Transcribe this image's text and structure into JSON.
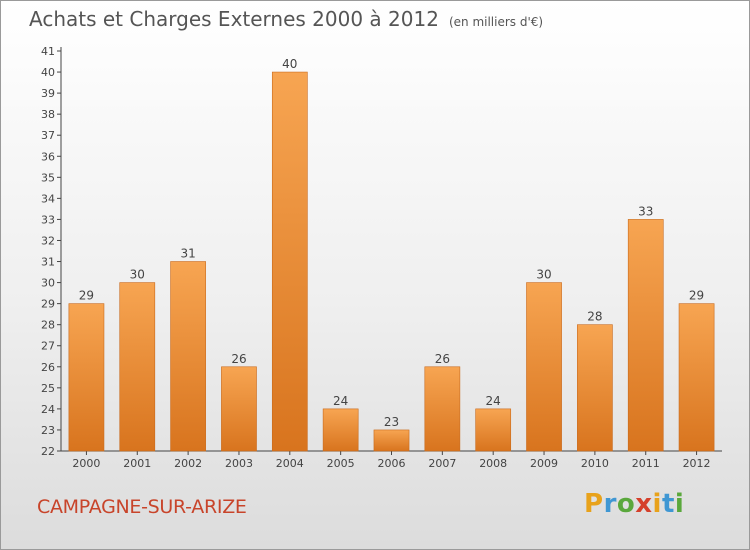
{
  "header": {
    "title": "Achats et Charges Externes 2000 à 2012",
    "subtitle": "(en milliers d'€)"
  },
  "footer": {
    "commune": "CAMPAGNE-SUR-ARIZE",
    "brand": "Proxiti"
  },
  "colors": {
    "bar_top": "#f7a552",
    "bar_bottom": "#d8741e",
    "commune_text": "#c8442a"
  },
  "chart_data": {
    "type": "bar",
    "title": "Achats et Charges Externes 2000 à 2012",
    "subtitle": "(en milliers d'€)",
    "categories": [
      "2000",
      "2001",
      "2002",
      "2003",
      "2004",
      "2005",
      "2006",
      "2007",
      "2008",
      "2009",
      "2010",
      "2011",
      "2012"
    ],
    "values": [
      29,
      30,
      31,
      26,
      40,
      24,
      23,
      26,
      24,
      30,
      28,
      33,
      29
    ],
    "ylim": [
      22,
      41
    ],
    "yticks": [
      22,
      23,
      24,
      25,
      26,
      27,
      28,
      29,
      30,
      31,
      32,
      33,
      34,
      35,
      36,
      37,
      38,
      39,
      40,
      41
    ],
    "grid": false,
    "data_labels": true
  }
}
